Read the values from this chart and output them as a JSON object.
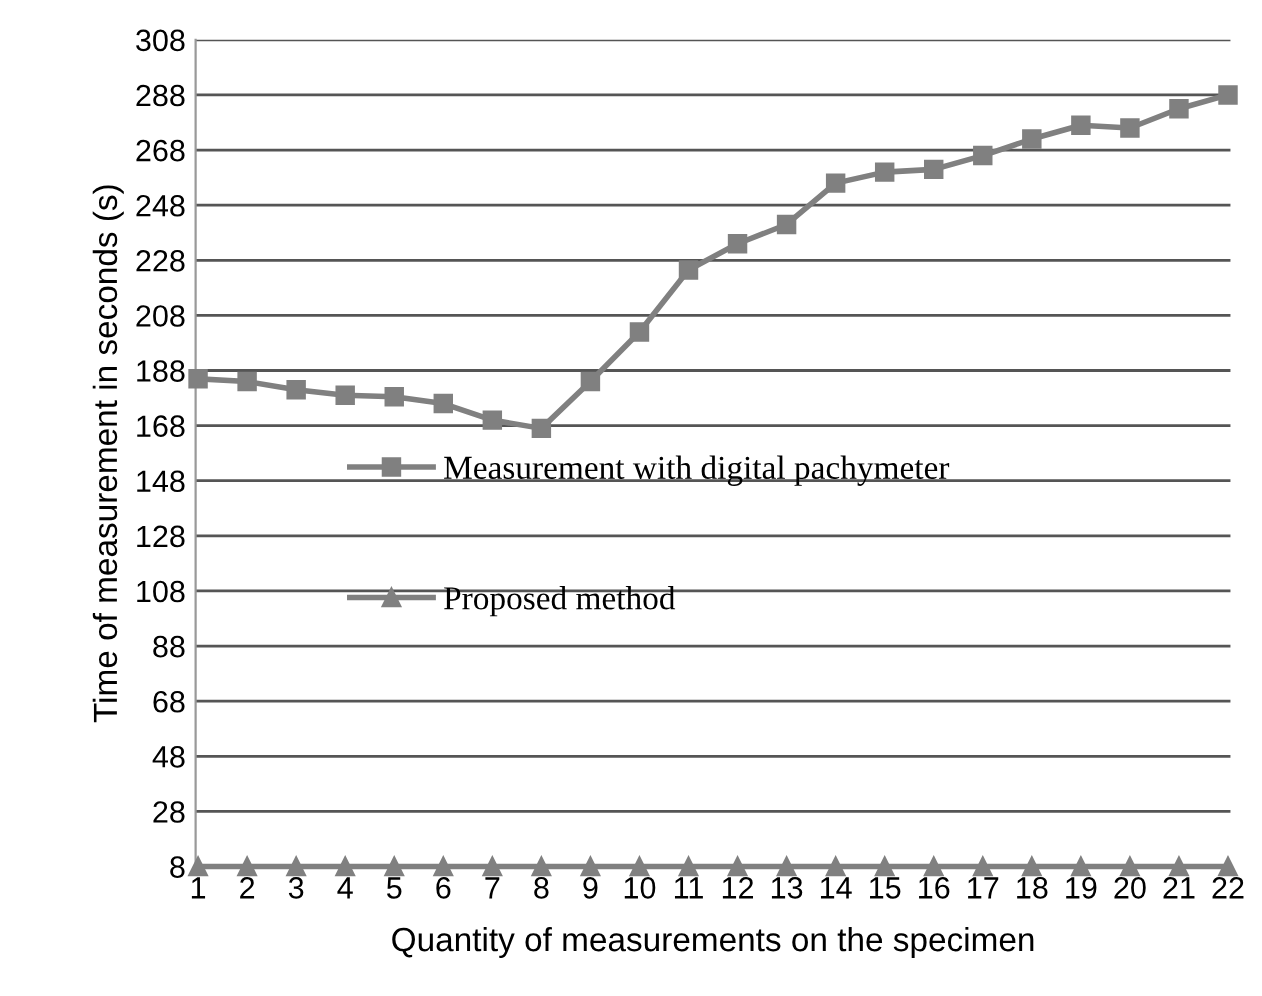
{
  "chart_data": {
    "type": "line",
    "xlabel": "Quantity of measurements on the specimen",
    "ylabel": "Time of measurement in seconds (s)",
    "categories": [
      "1",
      "2",
      "3",
      "4",
      "5",
      "6",
      "7",
      "8",
      "9",
      "10",
      "11",
      "12",
      "13",
      "14",
      "15",
      "16",
      "17",
      "18",
      "19",
      "20",
      "21",
      "22"
    ],
    "series": [
      {
        "name": "Measurement with digital pachymeter",
        "color": "#808080",
        "marker": "square",
        "values": [
          185,
          184,
          181,
          179,
          178.5,
          176,
          170,
          167,
          184,
          202,
          224.5,
          234,
          241,
          256,
          260,
          261,
          266,
          272,
          277,
          276,
          283,
          288
        ]
      },
      {
        "name": "Proposed method",
        "color": "#808080",
        "marker": "triangle",
        "values": [
          8,
          8,
          8,
          8,
          8,
          8,
          8,
          8,
          8,
          8,
          8,
          8,
          8,
          8,
          8,
          8,
          8,
          8,
          8,
          8,
          8,
          8
        ]
      }
    ],
    "ylim": [
      8,
      308
    ],
    "yticks": [
      8,
      28,
      48,
      68,
      88,
      108,
      128,
      148,
      168,
      188,
      208,
      228,
      248,
      268,
      288,
      308
    ],
    "grid": "y",
    "legend": "center left",
    "line_style": "solid"
  }
}
